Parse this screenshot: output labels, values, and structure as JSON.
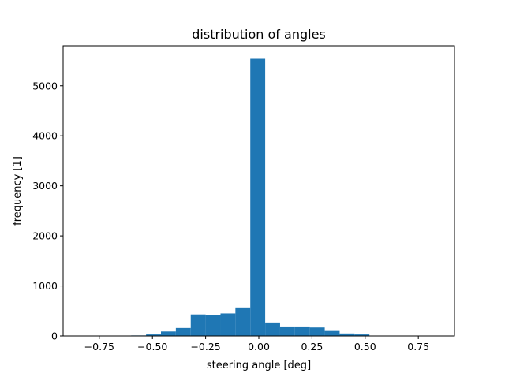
{
  "chart_data": {
    "type": "bar",
    "title": "distribution of angles",
    "xlabel": "steering angle [deg]",
    "ylabel": "frequency [1]",
    "xlim": [
      -0.92,
      0.92
    ],
    "ylim": [
      0,
      5800
    ],
    "x_ticks": [
      -0.75,
      -0.5,
      -0.25,
      0.0,
      0.25,
      0.5,
      0.75
    ],
    "x_tick_labels": [
      "−0.75",
      "−0.50",
      "−0.25",
      "0.00",
      "0.25",
      "0.50",
      "0.75"
    ],
    "y_ticks": [
      0,
      1000,
      2000,
      3000,
      4000,
      5000
    ],
    "y_tick_labels": [
      "0",
      "1000",
      "2000",
      "3000",
      "4000",
      "5000"
    ],
    "bar_color": "#1f77b4",
    "grid": false,
    "bins": [
      {
        "start": -0.6,
        "end": -0.53,
        "value": 10
      },
      {
        "start": -0.53,
        "end": -0.46,
        "value": 30
      },
      {
        "start": -0.46,
        "end": -0.39,
        "value": 90
      },
      {
        "start": -0.39,
        "end": -0.32,
        "value": 160
      },
      {
        "start": -0.32,
        "end": -0.25,
        "value": 430
      },
      {
        "start": -0.25,
        "end": -0.18,
        "value": 410
      },
      {
        "start": -0.18,
        "end": -0.11,
        "value": 450
      },
      {
        "start": -0.11,
        "end": -0.04,
        "value": 570
      },
      {
        "start": -0.04,
        "end": 0.03,
        "value": 5540
      },
      {
        "start": 0.03,
        "end": 0.1,
        "value": 270
      },
      {
        "start": 0.1,
        "end": 0.17,
        "value": 190
      },
      {
        "start": 0.17,
        "end": 0.24,
        "value": 190
      },
      {
        "start": 0.24,
        "end": 0.31,
        "value": 170
      },
      {
        "start": 0.31,
        "end": 0.38,
        "value": 100
      },
      {
        "start": 0.38,
        "end": 0.45,
        "value": 50
      },
      {
        "start": 0.45,
        "end": 0.52,
        "value": 30
      },
      {
        "start": 0.52,
        "end": 0.59,
        "value": 5
      }
    ]
  }
}
